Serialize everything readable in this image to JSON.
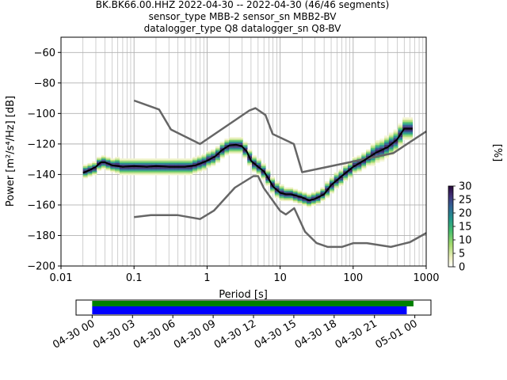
{
  "title_lines": [
    "BK.BK66.00.HHZ   2022-04-30 -- 2022-04-30  (46/46 segments)",
    "sensor_type MBB-2 sensor_sn MBB2-BV",
    "datalogger_type Q8 datalogger_sn Q8-BV"
  ],
  "colors": {
    "grid": "#b0b0b0",
    "noise_model": "#666666",
    "mode": "#000000",
    "coverage_top": "#008000",
    "coverage_bottom": "#0000ff"
  },
  "chart_data": [
    {
      "type": "heatmap",
      "name": "ppsd",
      "xlabel": "Period [s]",
      "ylabel": "Power [m²/s⁴/Hz] [dB]",
      "x_scale": "log",
      "xlim": [
        0.01,
        1000
      ],
      "ylim": [
        -200,
        -50
      ],
      "x_ticks": [
        0.01,
        0.1,
        1,
        10,
        100,
        1000
      ],
      "x_tick_labels": [
        "0.01",
        "0.1",
        "1",
        "10",
        "100",
        "1000"
      ],
      "y_ticks": [
        -200,
        -180,
        -160,
        -140,
        -120,
        -100,
        -80,
        -60
      ],
      "y_tick_labels": [
        "−200",
        "−180",
        "−160",
        "−140",
        "−120",
        "−100",
        "−80",
        "−60"
      ],
      "grid": true,
      "noise_models": [
        {
          "label": "NHNM",
          "period": [
            0.1,
            0.22,
            0.32,
            0.8,
            3.8,
            4.6,
            6.3,
            7.9,
            15.4,
            20,
            354.8,
            10000
          ],
          "db": [
            -91.5,
            -97.4,
            -110.5,
            -120,
            -98,
            -96.5,
            -101,
            -113.5,
            -120,
            -138.5,
            -126,
            -80.1
          ]
        },
        {
          "label": "NLNM",
          "period": [
            0.1,
            0.17,
            0.4,
            0.8,
            1.24,
            2.4,
            4.3,
            5,
            6,
            10,
            12,
            15.6,
            21.9,
            31.6,
            45,
            70,
            101,
            154,
            328,
            600,
            10000
          ],
          "db": [
            -168,
            -166.7,
            -166.7,
            -169.2,
            -163.7,
            -148.6,
            -141.1,
            -141.1,
            -149,
            -163.8,
            -166.2,
            -162.1,
            -177.5,
            -185,
            -187.5,
            -187.5,
            -185,
            -185,
            -187.5,
            -184.4,
            -151.5
          ]
        },
        {
          "label": "mode",
          "period": [
            0.02,
            0.025,
            0.03,
            0.035,
            0.04,
            0.05,
            0.07,
            0.1,
            0.15,
            0.2,
            0.3,
            0.5,
            0.7,
            1,
            1.3,
            1.6,
            2,
            2.5,
            3,
            3.5,
            4,
            5,
            6,
            7,
            8,
            10,
            12,
            14,
            17,
            20,
            25,
            30,
            40,
            50,
            70,
            100,
            150,
            200,
            300,
            400,
            500,
            650
          ],
          "db": [
            -139,
            -137,
            -135,
            -132,
            -132,
            -134,
            -135,
            -134.5,
            -135,
            -134.5,
            -135,
            -135,
            -134,
            -131,
            -128,
            -124,
            -121,
            -120.5,
            -121.5,
            -125,
            -131,
            -135,
            -138,
            -143,
            -148,
            -152,
            -153,
            -153,
            -154,
            -155,
            -157,
            -156,
            -153,
            -147,
            -141,
            -135,
            -130,
            -126,
            -122,
            -117,
            -110,
            -110
          ]
        }
      ],
      "colorbar": {
        "label": "[%]",
        "min": 0,
        "max": 30,
        "ticks": [
          0,
          5,
          10,
          15,
          20,
          25,
          30
        ],
        "tick_labels": [
          "0",
          "5",
          "10",
          "15",
          "20",
          "25",
          "30"
        ],
        "colormap": "viridis_white_r"
      }
    },
    {
      "type": "timeline",
      "name": "data-coverage",
      "x_ticks": [
        "04-30 00",
        "04-30 03",
        "04-30 06",
        "04-30 09",
        "04-30 12",
        "04-30 15",
        "04-30 18",
        "04-30 21",
        "05-01 00"
      ],
      "x_hours": [
        0,
        3,
        6,
        9,
        12,
        15,
        18,
        21,
        24
      ],
      "xlim_hours": [
        -1.2,
        25.2
      ],
      "bars": [
        {
          "label": "available data",
          "start_hour": 0,
          "end_hour": 23.9
        },
        {
          "label": "processed PSD segments",
          "start_hour": 0,
          "end_hour": 23.4
        }
      ]
    }
  ]
}
